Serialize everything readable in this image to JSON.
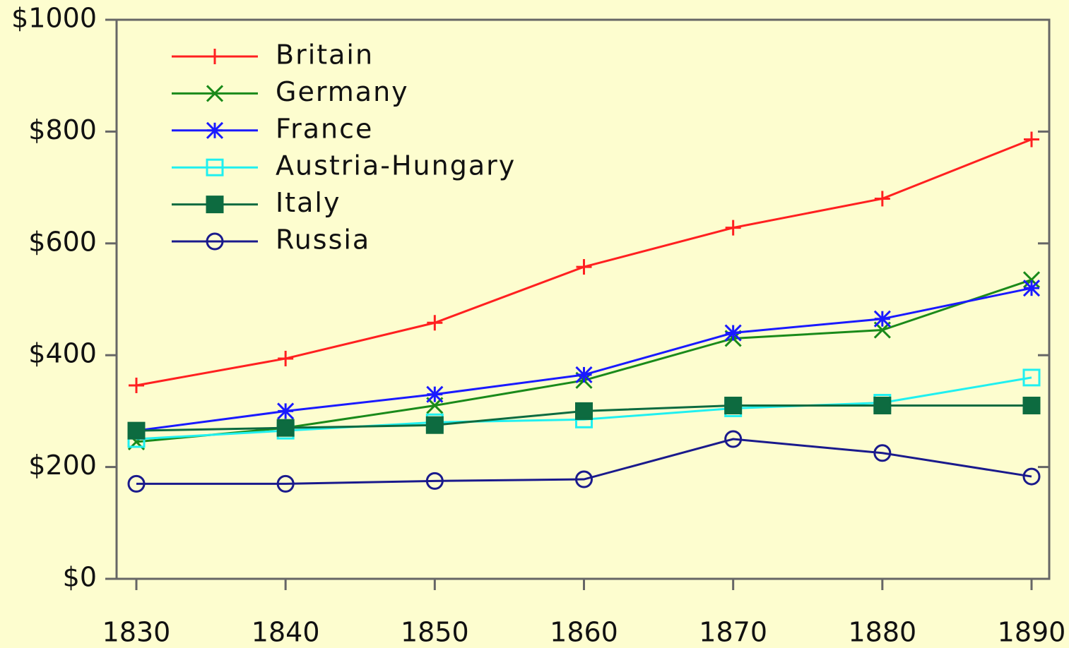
{
  "chart_data": {
    "type": "line",
    "x": [
      1830,
      1840,
      1850,
      1860,
      1870,
      1880,
      1890
    ],
    "xlim": [
      1830,
      1890
    ],
    "xticks": [
      1830,
      1840,
      1850,
      1860,
      1870,
      1880,
      1890
    ],
    "ylim": [
      0,
      1000
    ],
    "yticks": [
      {
        "value": 0,
        "label": "$0"
      },
      {
        "value": 200,
        "label": "$200"
      },
      {
        "value": 400,
        "label": "$400"
      },
      {
        "value": 600,
        "label": "$600"
      },
      {
        "value": 800,
        "label": "$800"
      },
      {
        "value": 1000,
        "label": "$1000"
      }
    ],
    "legend": "upper left",
    "series": [
      {
        "name": "Britain",
        "color": "#ff2020",
        "marker": "plus",
        "values": [
          346,
          394,
          458,
          558,
          628,
          680,
          786
        ]
      },
      {
        "name": "Germany",
        "color": "#1a8a1a",
        "marker": "x",
        "values": [
          245,
          270,
          310,
          355,
          430,
          445,
          535
        ]
      },
      {
        "name": "France",
        "color": "#1a1aff",
        "marker": "asterisk",
        "values": [
          265,
          300,
          330,
          365,
          440,
          465,
          520
        ]
      },
      {
        "name": "Austria-Hungary",
        "color": "#20f0f0",
        "marker": "open-square",
        "values": [
          250,
          265,
          280,
          285,
          305,
          315,
          360
        ]
      },
      {
        "name": "Italy",
        "color": "#0d6b40",
        "marker": "filled-square",
        "values": [
          265,
          270,
          275,
          300,
          310,
          310,
          310
        ]
      },
      {
        "name": "Russia",
        "color": "#1a1a8c",
        "marker": "open-circle",
        "values": [
          170,
          170,
          175,
          178,
          250,
          225,
          183
        ]
      }
    ]
  }
}
